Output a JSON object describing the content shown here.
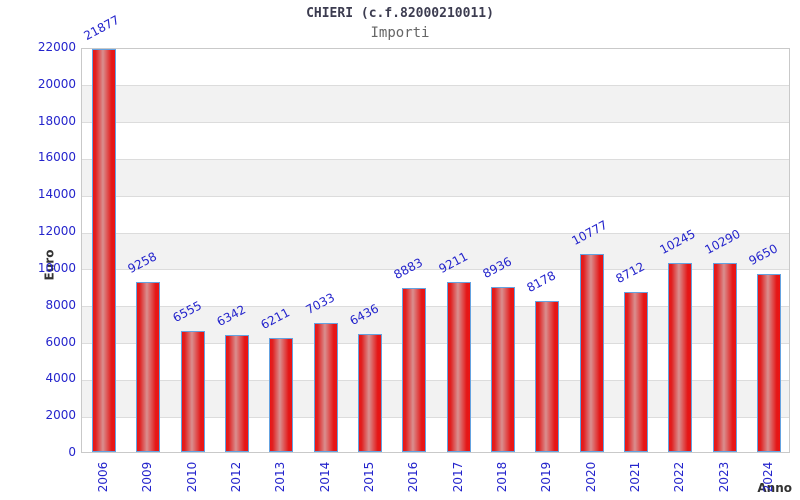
{
  "header": {
    "title": "CHIERI (c.f.82000210011)",
    "subtitle": "Importi"
  },
  "chart_data": {
    "type": "bar",
    "title": "CHIERI (c.f.82000210011)",
    "subtitle": "Importi",
    "xlabel": "Anno",
    "ylabel": "Euro",
    "categories": [
      "2006",
      "2009",
      "2010",
      "2012",
      "2013",
      "2014",
      "2015",
      "2016",
      "2017",
      "2018",
      "2019",
      "2020",
      "2021",
      "2022",
      "2023",
      "2024"
    ],
    "values": [
      21877,
      9258,
      6555,
      6342,
      6211,
      7033,
      6436,
      8883,
      9211,
      8936,
      8178,
      10777,
      8712,
      10245,
      10290,
      9650
    ],
    "ylim": [
      0,
      22000
    ],
    "ytick_step": 2000,
    "yticks": [
      0,
      2000,
      4000,
      6000,
      8000,
      10000,
      12000,
      14000,
      16000,
      18000,
      20000,
      22000
    ],
    "grid": true,
    "legend": "none",
    "colors": {
      "tick_label": "#2424cc",
      "value_label": "#2424cc",
      "bar_main": "#ec1414",
      "bar_mid": "#d98f8f",
      "bar_edge": "#64a2e0",
      "band_gray": "#f2f2f2",
      "gridline": "#dcdcdc",
      "plot_border": "#c9c9c9",
      "title": "#3c3c50",
      "subtitle": "#666666",
      "axis_title": "#333333"
    }
  }
}
